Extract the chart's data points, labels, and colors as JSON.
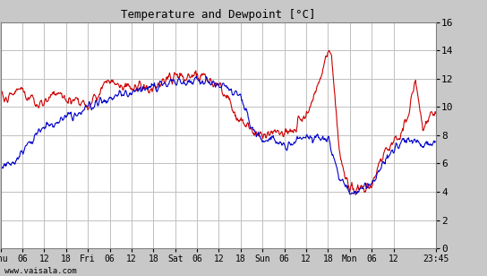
{
  "title": "Temperature and Dewpoint [°C]",
  "xlabel_ticks": [
    "Thu",
    "06",
    "12",
    "18",
    "Fri",
    "06",
    "12",
    "18",
    "Sat",
    "06",
    "12",
    "18",
    "Sun",
    "06",
    "12",
    "18",
    "Mon",
    "06",
    "12",
    "23:45"
  ],
  "ylabel_ticks": [
    0,
    2,
    4,
    6,
    8,
    10,
    12,
    14,
    16
  ],
  "ylim": [
    0,
    16
  ],
  "watermark": "www.vaisala.com",
  "bg_color": "#c8c8c8",
  "plot_bg_color": "#ffffff",
  "grid_color": "#c0c0c0",
  "temp_color": "#cc0000",
  "dewp_color": "#0000cc",
  "line_width": 0.8,
  "tick_positions": [
    0,
    6,
    12,
    18,
    24,
    30,
    36,
    42,
    48,
    54,
    60,
    66,
    72,
    78,
    84,
    90,
    96,
    102,
    108,
    119.75
  ],
  "temp_knots_x": [
    0,
    2,
    5,
    8,
    12,
    15,
    18,
    21,
    24,
    27,
    30,
    33,
    36,
    39,
    42,
    45,
    48,
    51,
    54,
    57,
    60,
    63,
    65,
    67,
    69,
    72,
    75,
    78,
    81,
    84,
    87,
    90,
    91,
    93,
    96,
    99,
    102,
    105,
    108,
    110,
    112,
    114,
    116,
    118,
    119.75
  ],
  "temp_knots_y": [
    10.8,
    10.5,
    11.5,
    10.4,
    10.2,
    11.2,
    10.4,
    10.6,
    10.0,
    11.0,
    12.0,
    11.3,
    11.5,
    11.3,
    11.2,
    11.8,
    12.2,
    12.1,
    12.3,
    12.0,
    11.4,
    10.5,
    9.0,
    9.2,
    8.3,
    7.9,
    8.2,
    8.0,
    8.5,
    9.3,
    11.5,
    14.0,
    13.5,
    7.0,
    4.0,
    4.3,
    4.5,
    6.5,
    7.5,
    8.0,
    9.5,
    12.0,
    8.5,
    9.5,
    9.5
  ],
  "dewp_knots_x": [
    0,
    4,
    8,
    12,
    16,
    20,
    24,
    28,
    32,
    36,
    40,
    44,
    48,
    50,
    54,
    57,
    60,
    63,
    66,
    69,
    72,
    75,
    78,
    81,
    84,
    87,
    90,
    91,
    93,
    96,
    99,
    102,
    105,
    108,
    110,
    112,
    114,
    116,
    118,
    119.75
  ],
  "dewp_knots_y": [
    5.7,
    6.2,
    7.5,
    8.5,
    9.0,
    9.4,
    10.0,
    10.4,
    10.7,
    11.0,
    11.3,
    11.5,
    11.8,
    11.8,
    11.9,
    11.8,
    11.6,
    11.2,
    10.7,
    8.5,
    7.5,
    7.8,
    7.2,
    7.5,
    8.0,
    7.8,
    7.8,
    7.0,
    5.0,
    4.0,
    4.2,
    4.5,
    6.0,
    7.0,
    7.5,
    7.8,
    7.5,
    7.2,
    7.5,
    7.5
  ]
}
